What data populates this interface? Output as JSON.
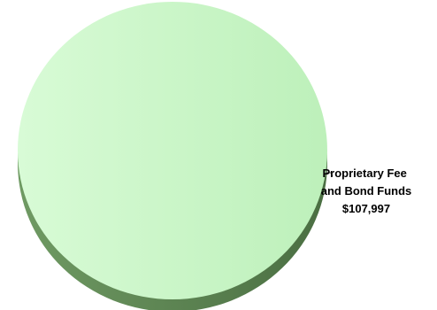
{
  "chart_data": {
    "type": "pie",
    "style": "3d",
    "slices": [
      {
        "label_lines": [
          "Proprietary Fee",
          "and Bond Funds"
        ],
        "value_label": "$107,997",
        "value": 107997,
        "share": 1.0,
        "color": "#c9f7c6"
      }
    ],
    "legend": "none",
    "data_label_placement": "right, with leader line"
  },
  "colors": {
    "slice_top_light": "#d8fbd6",
    "slice_top_dark": "#bdf0ba",
    "slice_side_light": "#6f9a63",
    "slice_side_dark": "#4a6e42",
    "leader_line": "#555555"
  }
}
